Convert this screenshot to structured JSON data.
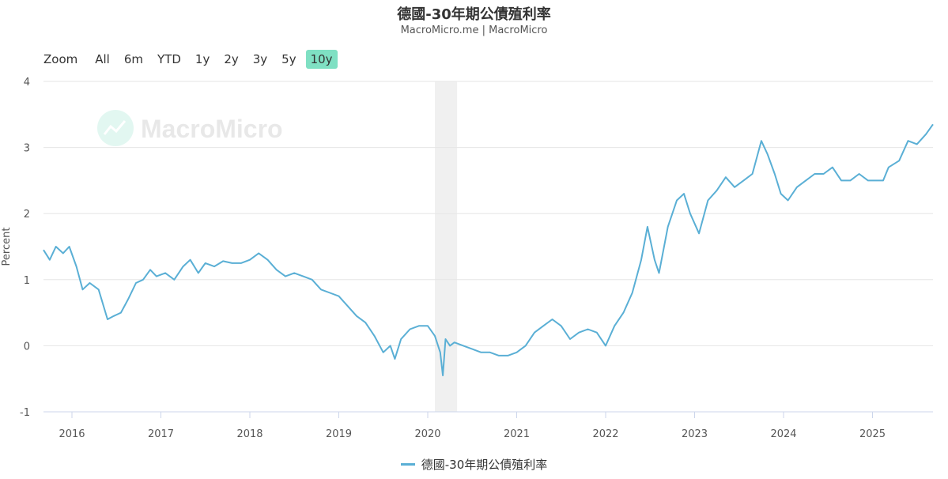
{
  "header": {
    "title": "德國-30年期公債殖利率",
    "subtitle": "MacroMicro.me | MacroMicro"
  },
  "toolbar": {
    "zoom_label": "Zoom",
    "ranges": [
      {
        "label": "All",
        "active": false
      },
      {
        "label": "6m",
        "active": false
      },
      {
        "label": "YTD",
        "active": false
      },
      {
        "label": "1y",
        "active": false
      },
      {
        "label": "2y",
        "active": false
      },
      {
        "label": "3y",
        "active": false
      },
      {
        "label": "5y",
        "active": false
      },
      {
        "label": "10y",
        "active": true
      }
    ],
    "active_color": "#7fe0c3"
  },
  "watermark": {
    "text": "MacroMicro"
  },
  "chart_data": {
    "type": "line",
    "ylabel": "Percent",
    "ylim": [
      -1,
      4
    ],
    "yticks": [
      -1,
      0,
      1,
      2,
      3,
      4
    ],
    "xlim": [
      2015.68,
      2025.68
    ],
    "xticks": [
      "2016",
      "2017",
      "2018",
      "2019",
      "2020",
      "2021",
      "2022",
      "2023",
      "2024",
      "2025"
    ],
    "grid": true,
    "legend_position": "bottom-center",
    "recession_band": {
      "start": 2020.08,
      "end": 2020.33
    },
    "series": [
      {
        "name": "德國-30年期公債殖利率",
        "color": "#5aafd5",
        "x": [
          2015.68,
          2015.75,
          2015.82,
          2015.9,
          2015.97,
          2016.05,
          2016.12,
          2016.2,
          2016.3,
          2016.4,
          2016.47,
          2016.55,
          2016.63,
          2016.72,
          2016.8,
          2016.88,
          2016.95,
          2017.05,
          2017.15,
          2017.25,
          2017.33,
          2017.42,
          2017.5,
          2017.6,
          2017.7,
          2017.8,
          2017.9,
          2018.0,
          2018.1,
          2018.2,
          2018.3,
          2018.4,
          2018.5,
          2018.6,
          2018.7,
          2018.8,
          2018.9,
          2019.0,
          2019.1,
          2019.2,
          2019.3,
          2019.4,
          2019.5,
          2019.58,
          2019.63,
          2019.7,
          2019.8,
          2019.9,
          2020.0,
          2020.08,
          2020.14,
          2020.17,
          2020.2,
          2020.25,
          2020.3,
          2020.4,
          2020.5,
          2020.6,
          2020.7,
          2020.8,
          2020.9,
          2021.0,
          2021.1,
          2021.2,
          2021.3,
          2021.4,
          2021.5,
          2021.6,
          2021.7,
          2021.8,
          2021.9,
          2022.0,
          2022.1,
          2022.2,
          2022.3,
          2022.4,
          2022.47,
          2022.55,
          2022.6,
          2022.7,
          2022.8,
          2022.88,
          2022.95,
          2023.05,
          2023.15,
          2023.25,
          2023.35,
          2023.45,
          2023.55,
          2023.65,
          2023.75,
          2023.82,
          2023.9,
          2023.97,
          2024.05,
          2024.15,
          2024.25,
          2024.35,
          2024.45,
          2024.55,
          2024.65,
          2024.75,
          2024.85,
          2024.95,
          2025.05,
          2025.12,
          2025.18,
          2025.3,
          2025.4,
          2025.5,
          2025.6,
          2025.68
        ],
        "values": [
          1.45,
          1.3,
          1.5,
          1.4,
          1.5,
          1.2,
          0.85,
          0.95,
          0.85,
          0.4,
          0.45,
          0.5,
          0.7,
          0.95,
          1.0,
          1.15,
          1.05,
          1.1,
          1.0,
          1.2,
          1.3,
          1.1,
          1.25,
          1.2,
          1.28,
          1.25,
          1.25,
          1.3,
          1.4,
          1.3,
          1.15,
          1.05,
          1.1,
          1.05,
          1.0,
          0.85,
          0.8,
          0.75,
          0.6,
          0.45,
          0.35,
          0.15,
          -0.1,
          0.0,
          -0.2,
          0.1,
          0.25,
          0.3,
          0.3,
          0.15,
          -0.1,
          -0.45,
          0.1,
          0.0,
          0.05,
          0.0,
          -0.05,
          -0.1,
          -0.1,
          -0.15,
          -0.15,
          -0.1,
          0.0,
          0.2,
          0.3,
          0.4,
          0.3,
          0.1,
          0.2,
          0.25,
          0.2,
          0.0,
          0.3,
          0.5,
          0.8,
          1.3,
          1.8,
          1.3,
          1.1,
          1.8,
          2.2,
          2.3,
          2.0,
          1.7,
          2.2,
          2.35,
          2.55,
          2.4,
          2.5,
          2.6,
          3.1,
          2.9,
          2.6,
          2.3,
          2.2,
          2.4,
          2.5,
          2.6,
          2.6,
          2.7,
          2.5,
          2.5,
          2.6,
          2.5,
          2.5,
          2.5,
          2.7,
          2.8,
          3.1,
          3.05,
          3.2,
          3.35
        ]
      }
    ]
  }
}
